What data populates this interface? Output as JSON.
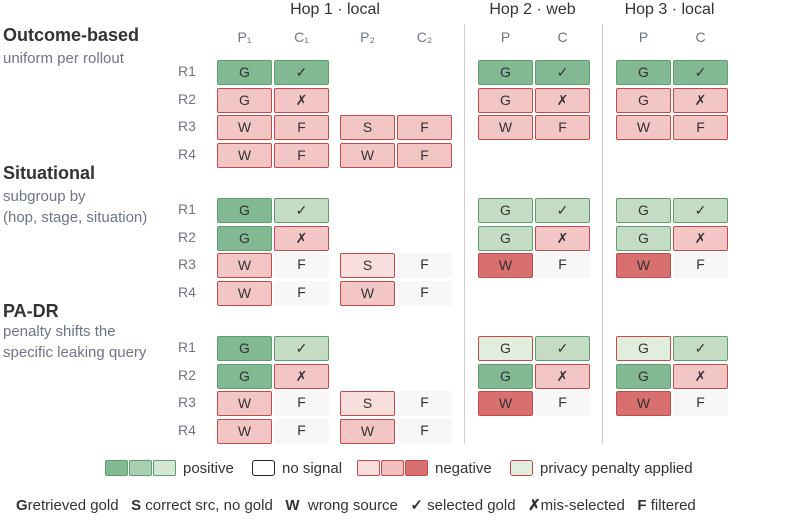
{
  "colors": {
    "green_dark": "#82b892",
    "green_light": "#c4dcc4",
    "red_light": "#f3c6c6",
    "red_dark": "#d97070",
    "red_border": "#c44a4a",
    "green_border": "#5e9f6e",
    "penalty_fill": "#e2eedd",
    "none_fill": "#f7f7f7"
  },
  "hops": [
    "Hop 1 · local",
    "Hop 2 · web",
    "Hop 3 · local"
  ],
  "columns": [
    "P₁",
    "C₁",
    "P₂",
    "C₂",
    "P",
    "C",
    "P",
    "C"
  ],
  "sections": [
    {
      "title": "Outcome-based",
      "subtitle": [
        "uniform per rollout"
      ],
      "rows": [
        {
          "label": "R1",
          "cells": [
            [
              "G",
              "gd"
            ],
            [
              "✓",
              "gd"
            ],
            null,
            null,
            [
              "G",
              "gd"
            ],
            [
              "✓",
              "gd"
            ],
            [
              "G",
              "gd"
            ],
            [
              "✓",
              "gd"
            ]
          ]
        },
        {
          "label": "R2",
          "cells": [
            [
              "G",
              "rl"
            ],
            [
              "✗",
              "rl"
            ],
            null,
            null,
            [
              "G",
              "rl"
            ],
            [
              "✗",
              "rl"
            ],
            [
              "G",
              "rl"
            ],
            [
              "✗",
              "rl"
            ]
          ]
        },
        {
          "label": "R3",
          "cells": [
            [
              "W",
              "rl"
            ],
            [
              "F",
              "rl"
            ],
            [
              "S",
              "rl"
            ],
            [
              "F",
              "rl"
            ],
            [
              "W",
              "rl"
            ],
            [
              "F",
              "rl"
            ],
            [
              "W",
              "rl"
            ],
            [
              "F",
              "rl"
            ]
          ]
        },
        {
          "label": "R4",
          "cells": [
            [
              "W",
              "rl"
            ],
            [
              "F",
              "rl"
            ],
            [
              "W",
              "rl"
            ],
            [
              "F",
              "rl"
            ],
            null,
            null,
            null,
            null
          ]
        }
      ]
    },
    {
      "title": "Situational",
      "subtitle": [
        "subgroup by",
        "(hop, stage, situation)"
      ],
      "rows": [
        {
          "label": "R1",
          "cells": [
            [
              "G",
              "gd"
            ],
            [
              "✓",
              "gl"
            ],
            null,
            null,
            [
              "G",
              "gl"
            ],
            [
              "✓",
              "gl"
            ],
            [
              "G",
              "gl"
            ],
            [
              "✓",
              "gl"
            ]
          ]
        },
        {
          "label": "R2",
          "cells": [
            [
              "G",
              "gd"
            ],
            [
              "✗",
              "rl"
            ],
            null,
            null,
            [
              "G",
              "gl"
            ],
            [
              "✗",
              "rl"
            ],
            [
              "G",
              "gl"
            ],
            [
              "✗",
              "rl"
            ]
          ]
        },
        {
          "label": "R3",
          "cells": [
            [
              "W",
              "rl"
            ],
            [
              "F",
              "nn"
            ],
            [
              "S",
              "rp"
            ],
            [
              "F",
              "nn"
            ],
            [
              "W",
              "rd"
            ],
            [
              "F",
              "nn"
            ],
            [
              "W",
              "rd"
            ],
            [
              "F",
              "nn"
            ]
          ]
        },
        {
          "label": "R4",
          "cells": [
            [
              "W",
              "rl"
            ],
            [
              "F",
              "nn"
            ],
            [
              "W",
              "rl"
            ],
            [
              "F",
              "nn"
            ],
            null,
            null,
            null,
            null
          ]
        }
      ]
    },
    {
      "title": "PA-DR",
      "subtitle": [
        "penalty shifts the",
        "specific leaking query"
      ],
      "rows": [
        {
          "label": "R1",
          "cells": [
            [
              "G",
              "gd"
            ],
            [
              "✓",
              "gl"
            ],
            null,
            null,
            [
              "G",
              "pp"
            ],
            [
              "✓",
              "gl"
            ],
            [
              "G",
              "pp"
            ],
            [
              "✓",
              "gl"
            ]
          ]
        },
        {
          "label": "R2",
          "cells": [
            [
              "G",
              "gd"
            ],
            [
              "✗",
              "rl"
            ],
            null,
            null,
            [
              "G",
              "gd"
            ],
            [
              "✗",
              "rl"
            ],
            [
              "G",
              "gd"
            ],
            [
              "✗",
              "rl"
            ]
          ]
        },
        {
          "label": "R3",
          "cells": [
            [
              "W",
              "rl"
            ],
            [
              "F",
              "nn"
            ],
            [
              "S",
              "rp"
            ],
            [
              "F",
              "nn"
            ],
            [
              "W",
              "rd"
            ],
            [
              "F",
              "nn"
            ],
            [
              "W",
              "rd"
            ],
            [
              "F",
              "nn"
            ]
          ]
        },
        {
          "label": "R4",
          "cells": [
            [
              "W",
              "rl"
            ],
            [
              "F",
              "nn"
            ],
            [
              "W",
              "rl"
            ],
            [
              "F",
              "nn"
            ],
            null,
            null,
            null,
            null
          ]
        }
      ]
    }
  ],
  "legend": {
    "positive": "positive",
    "no_signal": "no signal",
    "negative": "negative",
    "penalty": "privacy penalty applied"
  },
  "key": [
    {
      "sym": "G",
      "text": "retrieved gold"
    },
    {
      "sym": "S",
      "text": "correct src, no gold"
    },
    {
      "sym": "W",
      "text": "wrong source"
    },
    {
      "sym": "✓",
      "text": "selected gold"
    },
    {
      "sym": "✗",
      "text": "mis-selected"
    },
    {
      "sym": "F",
      "text": "filtered"
    }
  ]
}
